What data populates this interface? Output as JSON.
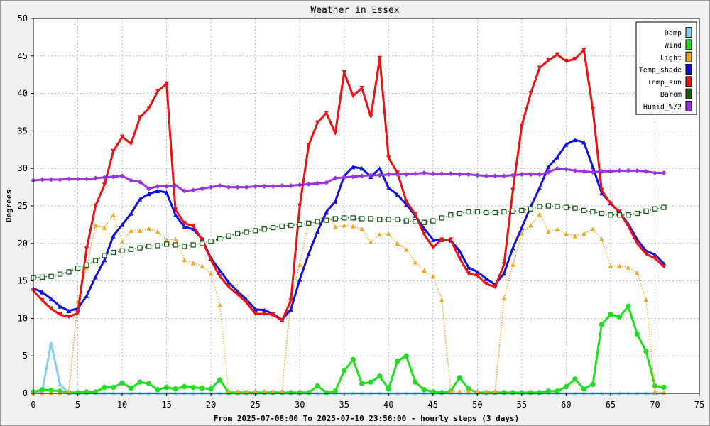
{
  "chart_data": {
    "type": "line",
    "title": "Weather in Essex",
    "xlabel": "From 2025-07-08:00 To 2025-07-10 23:56:00 - hourly steps (3 days)",
    "ylabel": "Degrees",
    "xlim": [
      0,
      75
    ],
    "ylim": [
      0,
      50
    ],
    "xticks": [
      0,
      5,
      10,
      15,
      20,
      25,
      30,
      35,
      40,
      45,
      50,
      55,
      60,
      65,
      70,
      75
    ],
    "yticks": [
      0,
      5,
      10,
      15,
      20,
      25,
      30,
      35,
      40,
      45,
      50
    ],
    "grid": true,
    "legend_position": "top-right",
    "series": [
      {
        "name": "Damp",
        "color": "#87ceeb",
        "marker": "triangle-up",
        "line": "solid",
        "x": [
          0,
          1,
          2,
          3,
          4,
          5,
          6,
          7,
          8,
          9,
          10,
          11,
          12,
          13,
          14,
          15,
          16,
          17,
          18,
          19,
          20,
          21,
          22,
          23,
          24,
          25,
          26,
          27,
          28,
          29,
          30,
          31,
          32,
          33,
          34,
          35,
          36,
          37,
          38,
          39,
          40,
          41,
          42,
          43,
          44,
          45,
          46,
          47,
          48,
          49,
          50,
          51,
          52,
          53,
          54,
          55,
          56,
          57,
          58,
          59,
          60,
          61,
          62,
          63,
          64,
          65,
          66,
          67,
          68,
          69,
          70,
          71
        ],
        "y": [
          0,
          0.3,
          6.7,
          1.2,
          0,
          0,
          0,
          0,
          0,
          0,
          0,
          0,
          0,
          0,
          0,
          0,
          0,
          0,
          0,
          0,
          0,
          0,
          0,
          0,
          0,
          0,
          0,
          0,
          0,
          0,
          0,
          0,
          0,
          0,
          0,
          0,
          0,
          0,
          0,
          0,
          0,
          0,
          0,
          0,
          0,
          0,
          0,
          0,
          0,
          0,
          0,
          0,
          0,
          0,
          0,
          0,
          0,
          0,
          0,
          0,
          0,
          0,
          0,
          0,
          0,
          0,
          0,
          0,
          0,
          0,
          0,
          0
        ]
      },
      {
        "name": "Wind",
        "color": "#22dd22",
        "marker": "circle",
        "line": "solid",
        "x": [
          0,
          1,
          2,
          3,
          4,
          5,
          6,
          7,
          8,
          9,
          10,
          11,
          12,
          13,
          14,
          15,
          16,
          17,
          18,
          19,
          20,
          21,
          22,
          23,
          24,
          25,
          26,
          27,
          28,
          29,
          30,
          31,
          32,
          33,
          34,
          35,
          36,
          37,
          38,
          39,
          40,
          41,
          42,
          43,
          44,
          45,
          46,
          47,
          48,
          49,
          50,
          51,
          52,
          53,
          54,
          55,
          56,
          57,
          58,
          59,
          60,
          61,
          62,
          63,
          64,
          65,
          66,
          67,
          68,
          69,
          70,
          71
        ],
        "y": [
          0.2,
          0.5,
          0.4,
          0.3,
          0.1,
          0.1,
          0.2,
          0.2,
          0.8,
          0.8,
          1.4,
          0.7,
          1.5,
          1.3,
          0.5,
          0.8,
          0.6,
          0.9,
          0.8,
          0.7,
          0.6,
          1.8,
          0.1,
          0.1,
          0.1,
          0.1,
          0.1,
          0.1,
          0.1,
          0.1,
          0.1,
          0.1,
          1.0,
          0.1,
          0.3,
          3.0,
          4.5,
          1.3,
          1.5,
          2.3,
          0.6,
          4.3,
          5.0,
          1.5,
          0.5,
          0.2,
          0.1,
          0.3,
          2.1,
          0.6,
          0.1,
          0.1,
          0.1,
          0.1,
          0.1,
          0.1,
          0.1,
          0.1,
          0.3,
          0.3,
          0.9,
          1.9,
          0.6,
          1.2,
          9.2,
          10.5,
          10.2,
          11.6,
          7.9,
          5.6,
          1.0,
          0.8
        ]
      },
      {
        "name": "Light",
        "color": "#f5a623",
        "marker": "triangle-up",
        "line": "dotted",
        "x": [
          0,
          1,
          2,
          3,
          4,
          5,
          6,
          7,
          8,
          9,
          10,
          11,
          12,
          13,
          14,
          15,
          16,
          17,
          18,
          19,
          20,
          21,
          22,
          23,
          24,
          25,
          26,
          27,
          28,
          29,
          30,
          31,
          32,
          33,
          34,
          35,
          36,
          37,
          38,
          39,
          40,
          41,
          42,
          43,
          44,
          45,
          46,
          47,
          48,
          49,
          50,
          51,
          52,
          53,
          54,
          55,
          56,
          57,
          58,
          59,
          60,
          61,
          62,
          63,
          64,
          65,
          66,
          67,
          68,
          69,
          70,
          71
        ],
        "y": [
          0,
          0,
          0,
          0,
          0.2,
          12.3,
          16.8,
          22.4,
          22.1,
          23.8,
          20.2,
          21.7,
          21.7,
          22.0,
          21.6,
          20.5,
          20.6,
          17.8,
          17.4,
          17.0,
          16.0,
          11.8,
          0.3,
          0.2,
          0.2,
          0.3,
          0.3,
          0.3,
          0.3,
          12.6,
          17.2,
          22.7,
          22.8,
          24.1,
          22.2,
          22.4,
          22.3,
          21.9,
          20.2,
          21.2,
          21.3,
          20.0,
          19.2,
          17.5,
          16.4,
          15.6,
          12.5,
          0.3,
          0.3,
          0.4,
          0.3,
          0.2,
          0.3,
          12.7,
          17.2,
          21.4,
          22.4,
          23.9,
          21.6,
          21.9,
          21.3,
          21.0,
          21.3,
          21.9,
          20.6,
          17.0,
          17.0,
          16.8,
          16.1,
          12.5,
          0.3,
          0.1
        ]
      },
      {
        "name": "Temp_shade",
        "color": "#1010e0",
        "marker": "triangle-up",
        "line": "solid",
        "x": [
          0,
          1,
          2,
          3,
          4,
          5,
          6,
          7,
          8,
          9,
          10,
          11,
          12,
          13,
          14,
          15,
          16,
          17,
          18,
          19,
          20,
          21,
          22,
          23,
          24,
          25,
          26,
          27,
          28,
          29,
          30,
          31,
          32,
          33,
          34,
          35,
          36,
          37,
          38,
          39,
          40,
          41,
          42,
          43,
          44,
          45,
          46,
          47,
          48,
          49,
          50,
          51,
          52,
          53,
          54,
          55,
          56,
          57,
          58,
          59,
          60,
          61,
          62,
          63,
          64,
          65,
          66,
          67,
          68,
          69,
          70,
          71
        ],
        "y": [
          14.0,
          13.5,
          12.6,
          11.6,
          11.0,
          11.3,
          13.0,
          15.5,
          17.8,
          21.0,
          22.5,
          24.0,
          25.9,
          26.6,
          27.0,
          26.8,
          23.8,
          22.2,
          21.9,
          20.6,
          18.0,
          16.4,
          14.8,
          13.6,
          12.5,
          11.2,
          11.1,
          10.6,
          9.8,
          11.2,
          15.2,
          18.6,
          21.6,
          24.2,
          25.6,
          29.0,
          30.2,
          30.0,
          28.9,
          30.0,
          27.4,
          26.5,
          25.2,
          23.7,
          22.0,
          20.5,
          20.5,
          20.4,
          19.0,
          16.8,
          16.2,
          15.3,
          14.5,
          16.0,
          19.4,
          22.1,
          24.9,
          27.4,
          30.2,
          31.5,
          33.2,
          33.8,
          33.5,
          30.2,
          26.7,
          25.4,
          24.1,
          22.6,
          20.5,
          19.0,
          18.5,
          17.3
        ]
      },
      {
        "name": "Temp_sun",
        "color": "#ee1111",
        "marker": "triangle-down",
        "line": "solid",
        "x": [
          0,
          1,
          2,
          3,
          4,
          5,
          6,
          7,
          8,
          9,
          10,
          11,
          12,
          13,
          14,
          15,
          16,
          17,
          18,
          19,
          20,
          21,
          22,
          23,
          24,
          25,
          26,
          27,
          28,
          29,
          30,
          31,
          32,
          33,
          34,
          35,
          36,
          37,
          38,
          39,
          40,
          41,
          42,
          43,
          44,
          45,
          46,
          47,
          48,
          49,
          50,
          51,
          52,
          53,
          54,
          55,
          56,
          57,
          58,
          59,
          60,
          61,
          62,
          63,
          64,
          65,
          66,
          67,
          68,
          69,
          70,
          71
        ],
        "y": [
          13.7,
          12.4,
          11.3,
          10.5,
          10.2,
          10.7,
          19.3,
          25.0,
          27.8,
          32.3,
          34.2,
          33.3,
          36.8,
          38.0,
          40.3,
          41.3,
          24.5,
          22.7,
          22.3,
          20.5,
          17.8,
          15.6,
          14.2,
          13.2,
          12.1,
          10.6,
          10.6,
          10.5,
          9.7,
          12.4,
          25.0,
          33.1,
          36.1,
          37.4,
          34.7,
          42.8,
          39.7,
          40.7,
          36.9,
          44.7,
          31.4,
          29.4,
          25.6,
          23.9,
          21.2,
          19.5,
          20.5,
          20.5,
          18.0,
          16.0,
          15.7,
          14.6,
          14.2,
          17.2,
          27.1,
          35.7,
          40.0,
          43.4,
          44.4,
          45.2,
          44.3,
          44.6,
          45.8,
          37.9,
          27.1,
          25.3,
          24.2,
          22.3,
          20.0,
          18.6,
          18.0,
          16.9
        ]
      },
      {
        "name": "Barom",
        "color": "#1a5c1a",
        "marker": "square",
        "line": "dotted",
        "x": [
          0,
          1,
          2,
          3,
          4,
          5,
          6,
          7,
          8,
          9,
          10,
          11,
          12,
          13,
          14,
          15,
          16,
          17,
          18,
          19,
          20,
          21,
          22,
          23,
          24,
          25,
          26,
          27,
          28,
          29,
          30,
          31,
          32,
          33,
          34,
          35,
          36,
          37,
          38,
          39,
          40,
          41,
          42,
          43,
          44,
          45,
          46,
          47,
          48,
          49,
          50,
          51,
          52,
          53,
          54,
          55,
          56,
          57,
          58,
          59,
          60,
          61,
          62,
          63,
          64,
          65,
          66,
          67,
          68,
          69,
          70,
          71
        ],
        "y": [
          15.4,
          15.5,
          15.6,
          15.9,
          16.2,
          16.7,
          17.1,
          17.7,
          18.4,
          18.8,
          19.0,
          19.2,
          19.4,
          19.6,
          19.7,
          19.9,
          19.8,
          19.6,
          19.8,
          20.0,
          20.3,
          20.6,
          21.0,
          21.3,
          21.5,
          21.7,
          21.9,
          22.1,
          22.3,
          22.4,
          22.5,
          22.7,
          22.9,
          23.1,
          23.3,
          23.4,
          23.4,
          23.3,
          23.3,
          23.2,
          23.2,
          23.2,
          23.0,
          22.9,
          22.8,
          23.0,
          23.4,
          23.8,
          24.0,
          24.2,
          24.2,
          24.1,
          24.1,
          24.2,
          24.3,
          24.4,
          24.6,
          24.9,
          25.0,
          24.9,
          24.8,
          24.7,
          24.4,
          24.2,
          24.0,
          23.8,
          23.8,
          23.8,
          24.0,
          24.3,
          24.6,
          24.8
        ]
      },
      {
        "name": "Humid_%/2",
        "color": "#9933dd",
        "marker": "diamond",
        "line": "solid",
        "x": [
          0,
          1,
          2,
          3,
          4,
          5,
          6,
          7,
          8,
          9,
          10,
          11,
          12,
          13,
          14,
          15,
          16,
          17,
          18,
          19,
          20,
          21,
          22,
          23,
          24,
          25,
          26,
          27,
          28,
          29,
          30,
          31,
          32,
          33,
          34,
          35,
          36,
          37,
          38,
          39,
          40,
          41,
          42,
          43,
          44,
          45,
          46,
          47,
          48,
          49,
          50,
          51,
          52,
          53,
          54,
          55,
          56,
          57,
          58,
          59,
          60,
          61,
          62,
          63,
          64,
          65,
          66,
          67,
          68,
          69,
          70,
          71
        ],
        "y": [
          28.4,
          28.5,
          28.5,
          28.5,
          28.6,
          28.6,
          28.6,
          28.7,
          28.8,
          28.9,
          29.0,
          28.4,
          28.2,
          27.3,
          27.6,
          27.6,
          27.7,
          27.0,
          27.1,
          27.3,
          27.5,
          27.7,
          27.5,
          27.5,
          27.5,
          27.6,
          27.6,
          27.6,
          27.7,
          27.7,
          27.8,
          27.9,
          28.0,
          28.1,
          28.7,
          28.8,
          28.9,
          29.0,
          29.1,
          29.1,
          29.2,
          29.2,
          29.2,
          29.3,
          29.4,
          29.3,
          29.3,
          29.3,
          29.2,
          29.2,
          29.1,
          29.0,
          29.0,
          29.0,
          29.1,
          29.2,
          29.2,
          29.2,
          29.5,
          30.0,
          29.9,
          29.7,
          29.6,
          29.5,
          29.6,
          29.6,
          29.7,
          29.7,
          29.7,
          29.6,
          29.4,
          29.4
        ]
      }
    ]
  }
}
